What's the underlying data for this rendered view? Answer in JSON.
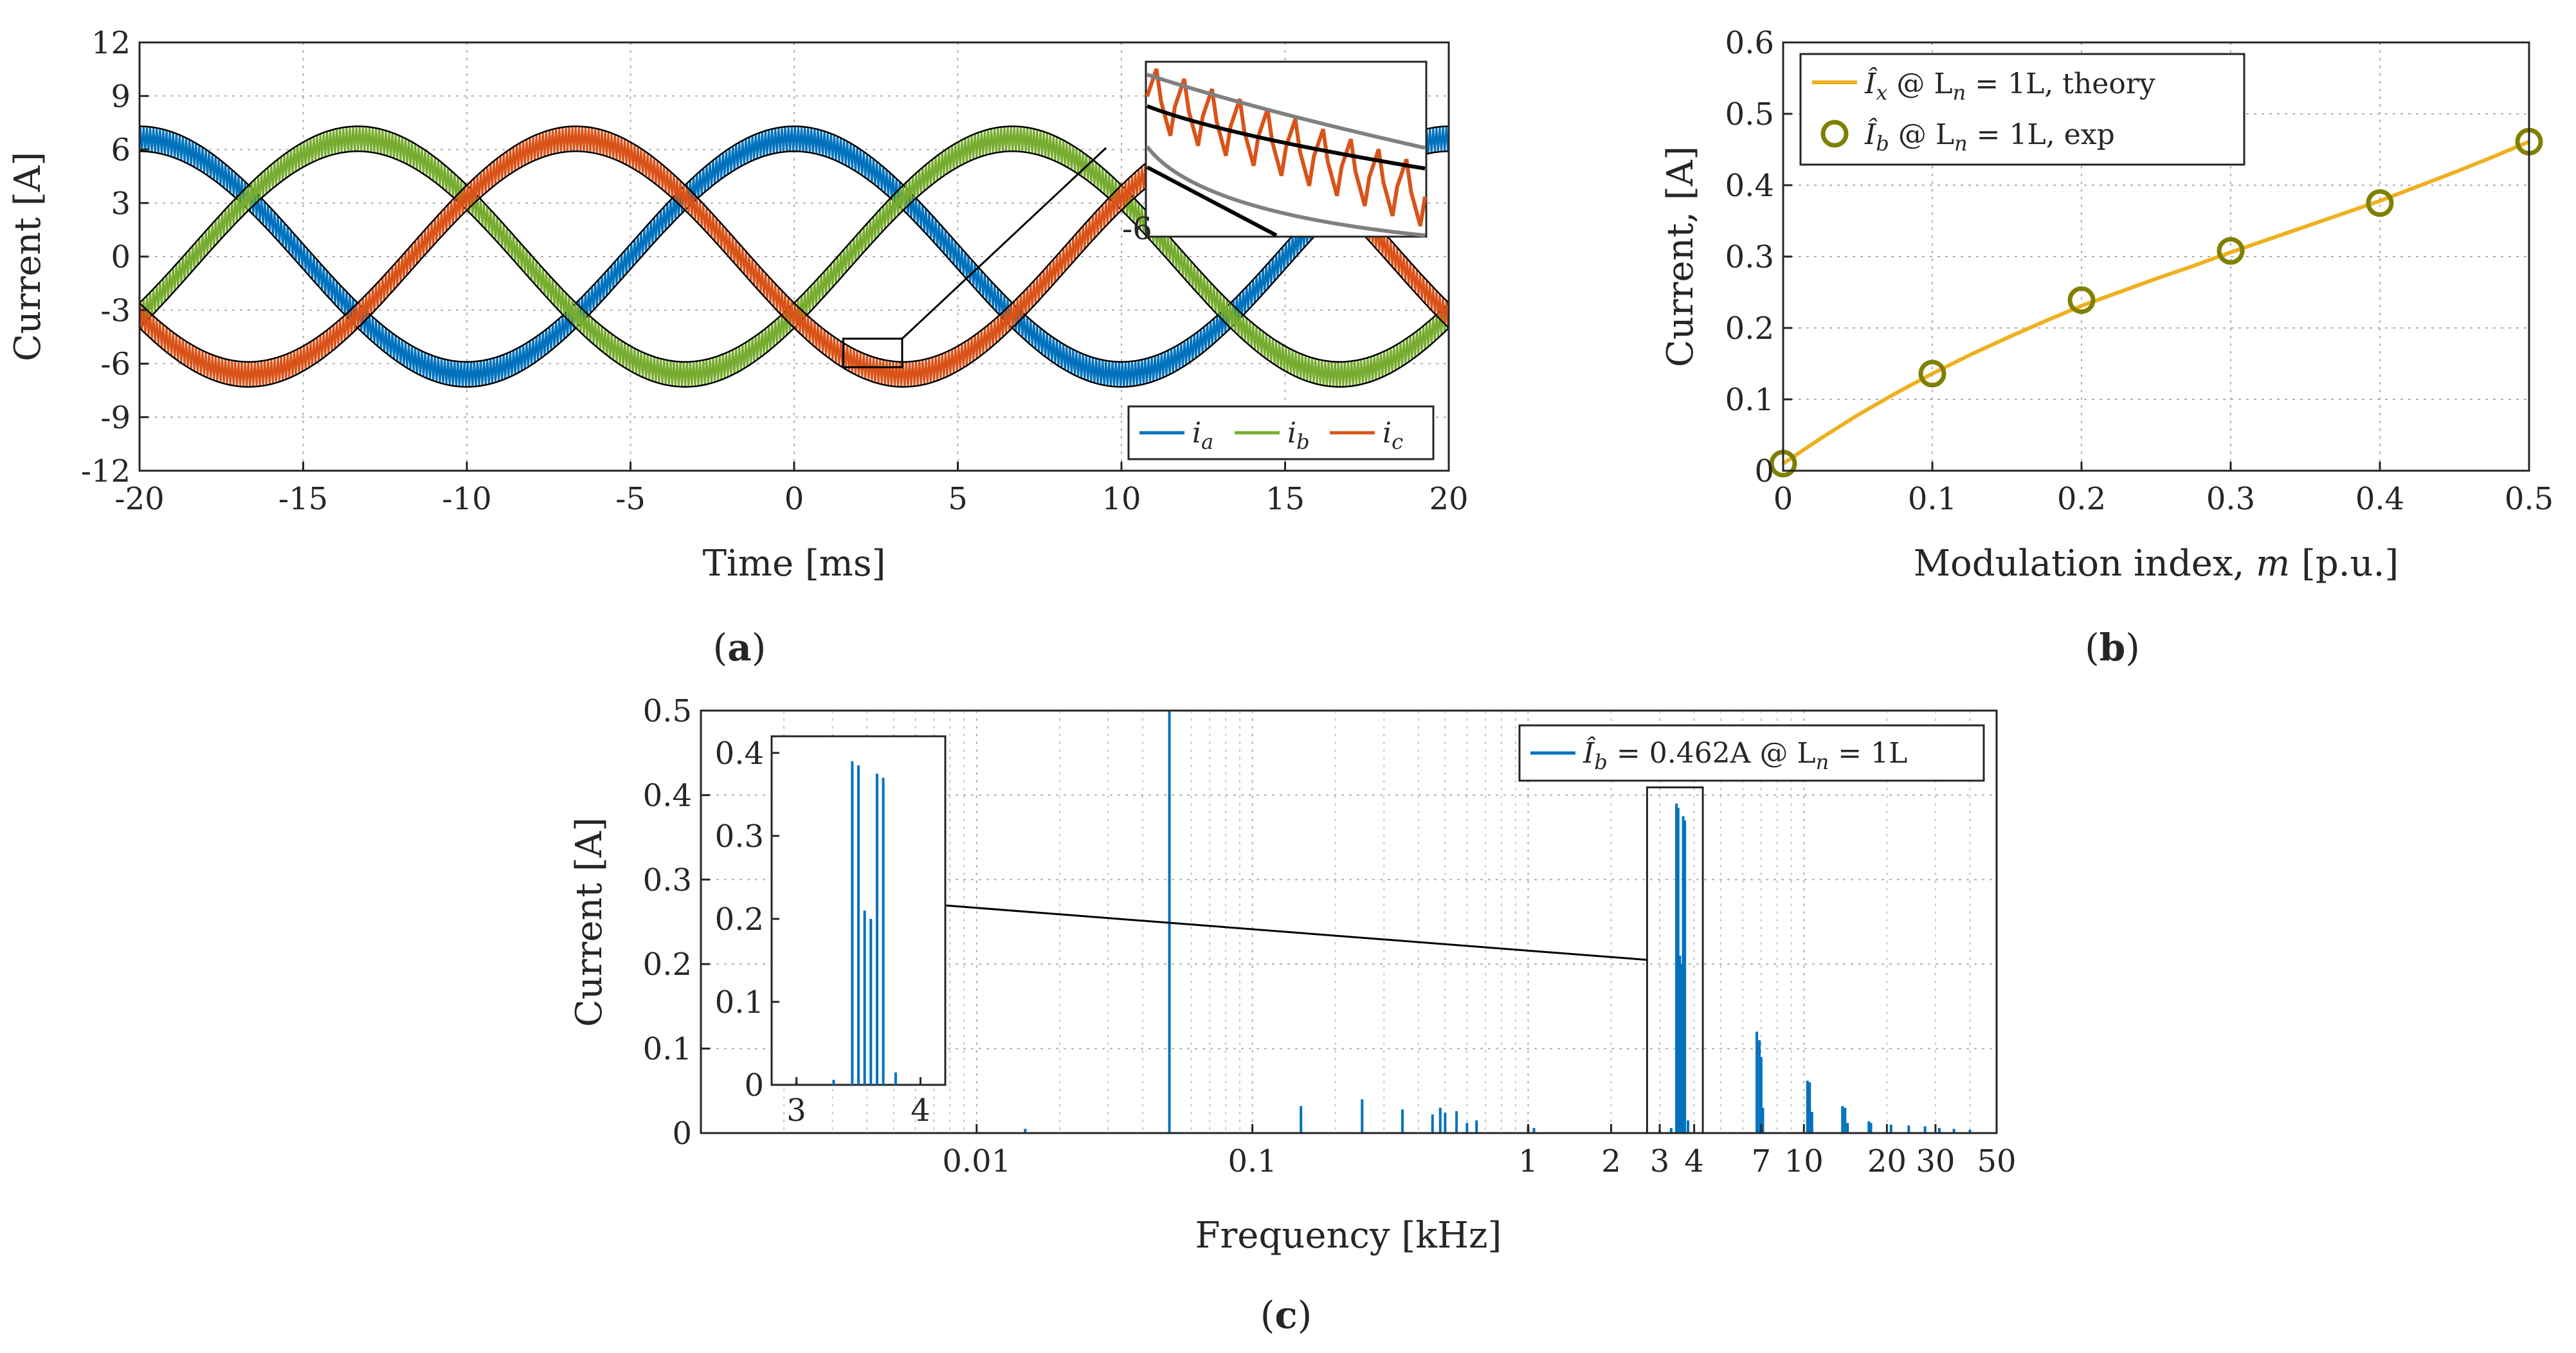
{
  "colors": {
    "blue": "#0072BD",
    "green": "#77AC30",
    "orange": "#D95319",
    "gold": "#EDB120",
    "olive": "#808000",
    "envelope": "#000000",
    "grey": "#808080"
  },
  "chart_data": [
    {
      "id": "a",
      "type": "line",
      "caption": "(a)",
      "xlabel": "Time [ms]",
      "ylabel": "Current [A]",
      "xlim": [
        -20,
        20
      ],
      "ylim": [
        -12,
        12
      ],
      "xticks": [
        -20,
        -15,
        -10,
        -5,
        0,
        5,
        10,
        15,
        20
      ],
      "xtick_labels": [
        "-20",
        "-15",
        "-10",
        "-5",
        "0",
        "5",
        "10",
        "15",
        "20"
      ],
      "yticks": [
        -12,
        -9,
        -6,
        -3,
        0,
        3,
        6,
        9,
        12
      ],
      "ytick_labels": [
        "-12",
        "-9",
        "-6",
        "-3",
        "0",
        "3",
        "6",
        "9",
        "12"
      ],
      "grid": true,
      "fundamental_hz": 50,
      "amplitude_A": 6.6,
      "ripple_A": 0.7,
      "series": [
        {
          "name": "ia",
          "label_base": "i",
          "label_sub": "a",
          "phase_deg": 0
        },
        {
          "name": "ib",
          "label_base": "i",
          "label_sub": "b",
          "phase_deg": -120
        },
        {
          "name": "ic",
          "label_base": "i",
          "label_sub": "c",
          "phase_deg": 120
        }
      ],
      "zoom_box": {
        "x": [
          1.5,
          3.3
        ],
        "y": [
          -6.2,
          -4.6
        ]
      },
      "inset_tick_label": "-6"
    },
    {
      "id": "b",
      "type": "line",
      "caption": "(b)",
      "xlabel_text": "Modulation index, ",
      "xlabel_symbol": "m",
      "xlabel_unit": " [p.u.]",
      "ylabel": "Current, [A]",
      "xlim": [
        0,
        0.5
      ],
      "ylim": [
        0,
        0.6
      ],
      "xticks": [
        0,
        0.1,
        0.2,
        0.3,
        0.4,
        0.5
      ],
      "xtick_labels": [
        "0",
        "0.1",
        "0.2",
        "0.3",
        "0.4",
        "0.5"
      ],
      "yticks": [
        0,
        0.1,
        0.2,
        0.3,
        0.4,
        0.5,
        0.6
      ],
      "ytick_labels": [
        "0",
        "0.1",
        "0.2",
        "0.3",
        "0.4",
        "0.5",
        "0.6"
      ],
      "grid": true,
      "legend_position": "top-left",
      "series": [
        {
          "name": "theory",
          "label_sym": "Î",
          "label_sub": "x",
          "label_rest": " @ L",
          "label_sub2": "n",
          "label_eq": " = 1L, theory",
          "x": [
            0,
            0.025,
            0.05,
            0.075,
            0.1,
            0.125,
            0.15,
            0.175,
            0.2,
            0.225,
            0.25,
            0.275,
            0.3,
            0.325,
            0.35,
            0.375,
            0.4,
            0.425,
            0.45,
            0.475,
            0.5
          ],
          "y": [
            0.01,
            0.045,
            0.078,
            0.108,
            0.136,
            0.162,
            0.186,
            0.209,
            0.231,
            0.25,
            0.269,
            0.287,
            0.306,
            0.324,
            0.342,
            0.36,
            0.378,
            0.398,
            0.418,
            0.439,
            0.461
          ]
        },
        {
          "name": "exp",
          "label_sym": "Î",
          "label_sub": "b",
          "label_rest": " @ L",
          "label_sub2": "n",
          "label_eq": " = 1L, exp",
          "x": [
            0,
            0.1,
            0.2,
            0.3,
            0.4,
            0.5
          ],
          "y": [
            0.01,
            0.136,
            0.239,
            0.308,
            0.375,
            0.461
          ]
        }
      ]
    },
    {
      "id": "c",
      "type": "bar",
      "caption": "(c)",
      "xlabel": "Frequency [kHz]",
      "ylabel": "Current [A]",
      "xscale": "log",
      "xlim": [
        0.001,
        50
      ],
      "ylim": [
        0,
        0.5
      ],
      "xticks": [
        0.01,
        0.1,
        1,
        2,
        3,
        4,
        7,
        10,
        20,
        30,
        50
      ],
      "xtick_labels": [
        "0.01",
        "0.1",
        "1",
        "2",
        "3",
        "4",
        "7",
        "10",
        "20",
        "30",
        "50"
      ],
      "yticks": [
        0,
        0.1,
        0.2,
        0.3,
        0.4,
        0.5
      ],
      "ytick_labels": [
        "0",
        "0.1",
        "0.2",
        "0.3",
        "0.4",
        "0.5"
      ],
      "grid": true,
      "legend_position": "top-right",
      "legend": {
        "sym": "Î",
        "sub": "b",
        "value": " = 0.462A @ L",
        "sub2": "n",
        "eq": " = 1L"
      },
      "freq_khz": [
        0.015,
        0.05,
        0.15,
        0.25,
        0.35,
        0.45,
        0.48,
        0.5,
        0.55,
        0.6,
        0.65,
        1.0,
        1.05,
        3.0,
        3.3,
        3.45,
        3.5,
        3.55,
        3.6,
        3.65,
        3.7,
        3.8,
        6.75,
        6.9,
        7.0,
        7.1,
        10.3,
        10.5,
        10.7,
        13.8,
        14.1,
        14.4,
        17.2,
        17.5,
        20.7,
        24.0,
        27.5,
        31.0,
        35.0,
        40.0
      ],
      "amps_A": [
        0.005,
        0.5,
        0.032,
        0.04,
        0.028,
        0.022,
        0.03,
        0.024,
        0.026,
        0.012,
        0.015,
        0.008,
        0.006,
        0.003,
        0.006,
        0.39,
        0.385,
        0.21,
        0.2,
        0.375,
        0.37,
        0.015,
        0.12,
        0.11,
        0.09,
        0.03,
        0.062,
        0.06,
        0.025,
        0.032,
        0.03,
        0.012,
        0.014,
        0.012,
        0.01,
        0.009,
        0.008,
        0.006,
        0.005,
        0.004
      ],
      "inset": {
        "xlim": [
          2.8,
          4.2
        ],
        "ylim": [
          0,
          0.42
        ],
        "xticks": [
          3,
          4
        ],
        "xtick_labels": [
          "3",
          "4"
        ],
        "yticks": [
          0,
          0.1,
          0.2,
          0.3,
          0.4
        ],
        "ytick_labels": [
          "0",
          "0.1",
          "0.2",
          "0.3",
          "0.4"
        ],
        "zoom_box": {
          "x": [
            2.7,
            4.3
          ],
          "y": [
            0,
            0.4
          ]
        }
      }
    }
  ]
}
